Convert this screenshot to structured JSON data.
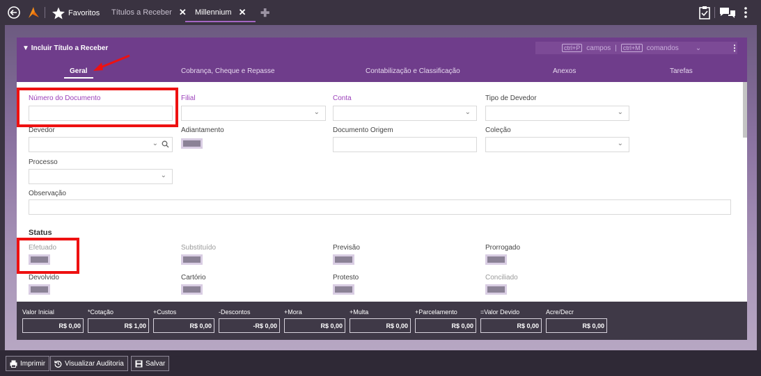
{
  "topbar": {
    "favorites_label": "Favoritos",
    "tabs": [
      {
        "label": "Títulos a Receber",
        "close": "✕"
      },
      {
        "label": "Millennium",
        "close": "✕"
      }
    ],
    "add_tab": "✚"
  },
  "form": {
    "title": "Incluir Título a Receber",
    "shortcut_campos_key": "ctrl+P",
    "shortcut_campos_label": "campos",
    "separator": "|",
    "shortcut_comandos_key": "ctrl+M",
    "shortcut_comandos_label": "comandos",
    "tabs": [
      "Geral",
      "Cobrança, Cheque e Repasse",
      "Contabilização e Classificação",
      "Anexos",
      "Tarefas"
    ],
    "fields": {
      "numero_documento": "Número do Documento",
      "filial": "Filial",
      "conta": "Conta",
      "tipo_devedor": "Tipo de Devedor",
      "devedor": "Devedor",
      "adiantamento": "Adiantamento",
      "documento_origem": "Documento Origem",
      "colecao": "Coleção",
      "processo": "Processo",
      "observacao": "Observação"
    },
    "status": {
      "heading": "Status",
      "efetuado": "Efetuado",
      "substituido": "Substituído",
      "previsao": "Previsão",
      "prorrogado": "Prorrogado",
      "devolvido": "Devolvido",
      "cartorio": "Cartório",
      "protesto": "Protesto",
      "conciliado": "Conciliado"
    }
  },
  "totals": [
    {
      "label": "Valor Inicial",
      "value": "R$ 0,00"
    },
    {
      "label": "*Cotação",
      "value": "R$ 1,00"
    },
    {
      "label": "+Custos",
      "value": "R$ 0,00"
    },
    {
      "label": "-Descontos",
      "value": "-R$ 0,00"
    },
    {
      "label": "+Mora",
      "value": "R$ 0,00"
    },
    {
      "label": "+Multa",
      "value": "R$ 0,00"
    },
    {
      "label": "+Parcelamento",
      "value": "R$ 0,00"
    },
    {
      "label": "=Valor Devido",
      "value": "R$ 0,00"
    },
    {
      "label": "Acre/Decr",
      "value": "R$ 0,00"
    }
  ],
  "actions": {
    "imprimir": "Imprimir",
    "auditoria": "Visualizar Auditoria",
    "salvar": "Salvar"
  },
  "colors": {
    "header": "#6f3d8b",
    "tab_underline": "#a566c4",
    "required_label": "#9b3fba",
    "highlight": "#ee1111"
  }
}
